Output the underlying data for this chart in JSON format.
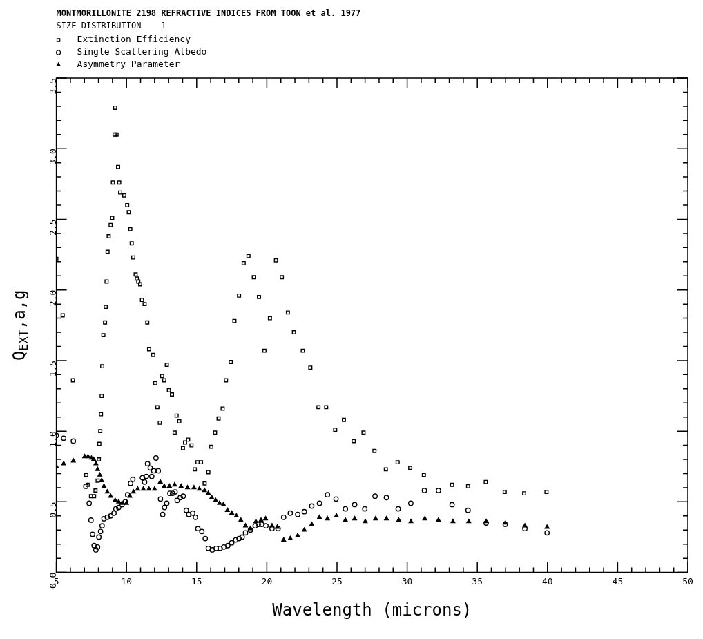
{
  "chart_data": {
    "type": "scatter",
    "title": "MONTMORILLONITE 2198 REFRACTIVE INDICES FROM TOON et al. 1977",
    "subtitle": "SIZE DISTRIBUTION    1",
    "xlabel": "Wavelength (microns)",
    "ylabel": "Q$_{EXT}$,a,g",
    "xlim": [
      5,
      50
    ],
    "ylim": [
      0,
      3.5
    ],
    "xticks": [
      5,
      {
        "value": 6,
        "label": null
      },
      {
        "value": 7,
        "label": null
      },
      {
        "value": 8,
        "label": null
      },
      {
        "value": 9,
        "label": null
      },
      10,
      {
        "value": 11,
        "label": null
      },
      {
        "value": 12,
        "label": null
      },
      {
        "value": 13,
        "label": null
      },
      {
        "value": 14,
        "label": null
      },
      15,
      {
        "value": 16,
        "label": null
      },
      {
        "value": 17,
        "label": null
      },
      {
        "value": 18,
        "label": null
      },
      {
        "value": 19,
        "label": null
      },
      20,
      {
        "value": 21,
        "label": null
      },
      {
        "value": 22,
        "label": null
      },
      {
        "value": 23,
        "label": null
      },
      {
        "value": 24,
        "label": null
      },
      25,
      {
        "value": 26,
        "label": null
      },
      {
        "value": 27,
        "label": null
      },
      {
        "value": 28,
        "label": null
      },
      {
        "value": 29,
        "label": null
      },
      30,
      {
        "value": 31,
        "label": null
      },
      {
        "value": 32,
        "label": null
      },
      {
        "value": 33,
        "label": null
      },
      {
        "value": 34,
        "label": null
      },
      35,
      {
        "value": 36,
        "label": null
      },
      {
        "value": 37,
        "label": null
      },
      {
        "value": 38,
        "label": null
      },
      {
        "value": 39,
        "label": null
      },
      40,
      {
        "value": 41,
        "label": null
      },
      {
        "value": 42,
        "label": null
      },
      {
        "value": 43,
        "label": null
      },
      {
        "value": 44,
        "label": null
      },
      45,
      {
        "value": 46,
        "label": null
      },
      {
        "value": 47,
        "label": null
      },
      {
        "value": 48,
        "label": null
      },
      {
        "value": 49,
        "label": null
      },
      50
    ],
    "yticks": [
      {
        "value": 0,
        "label": "0.0"
      },
      {
        "value": 0.1,
        "label": null
      },
      {
        "value": 0.2,
        "label": null
      },
      {
        "value": 0.3,
        "label": null
      },
      {
        "value": 0.4,
        "label": null
      },
      0.5,
      {
        "value": 0.6,
        "label": null
      },
      {
        "value": 0.7,
        "label": null
      },
      {
        "value": 0.8,
        "label": null
      },
      {
        "value": 0.9,
        "label": null
      },
      {
        "value": 1,
        "label": "1.0"
      },
      {
        "value": 1.1,
        "label": null
      },
      {
        "value": 1.2,
        "label": null
      },
      {
        "value": 1.3,
        "label": null
      },
      {
        "value": 1.4,
        "label": null
      },
      1.5,
      {
        "value": 1.6,
        "label": null
      },
      {
        "value": 1.7,
        "label": null
      },
      {
        "value": 1.8,
        "label": null
      },
      {
        "value": 1.9,
        "label": null
      },
      {
        "value": 2,
        "label": "2.0"
      },
      {
        "value": 2.1,
        "label": null
      },
      {
        "value": 2.2,
        "label": null
      },
      {
        "value": 2.3,
        "label": null
      },
      {
        "value": 2.4,
        "label": null
      },
      2.5,
      {
        "value": 2.6,
        "label": null
      },
      {
        "value": 2.7,
        "label": null
      },
      {
        "value": 2.8,
        "label": null
      },
      {
        "value": 2.9,
        "label": null
      },
      {
        "value": 3,
        "label": "3.0"
      },
      {
        "value": 3.1,
        "label": null
      },
      {
        "value": 3.2,
        "label": null
      },
      {
        "value": 3.3,
        "label": null
      },
      {
        "value": 3.4,
        "label": null
      },
      3.5
    ],
    "legend": "top left",
    "series": [
      {
        "name": "Extinction Efficiency",
        "color": "#000000",
        "marker": "square",
        "x": [
          5.0,
          5.45,
          6.18,
          7.13,
          7.23,
          7.47,
          7.69,
          7.79,
          7.94,
          8.03,
          8.06,
          8.13,
          8.18,
          8.23,
          8.27,
          8.35,
          8.47,
          8.52,
          8.58,
          8.65,
          8.73,
          8.87,
          8.98,
          9.03,
          9.15,
          9.19,
          9.29,
          9.4,
          9.48,
          9.55,
          9.84,
          10.05,
          10.16,
          10.27,
          10.37,
          10.48,
          10.65,
          10.74,
          10.84,
          10.97,
          11.1,
          11.29,
          11.48,
          11.61,
          11.9,
          12.05,
          12.2,
          12.37,
          12.54,
          12.69,
          12.87,
          13.02,
          13.24,
          13.43,
          13.57,
          13.76,
          14.02,
          14.17,
          14.39,
          14.63,
          14.87,
          15.06,
          15.31,
          15.57,
          15.83,
          16.04,
          16.31,
          16.56,
          16.85,
          17.09,
          17.43,
          17.69,
          18.02,
          18.35,
          18.69,
          19.07,
          19.44,
          19.83,
          20.22,
          20.65,
          21.07,
          21.5,
          21.93,
          22.56,
          23.1,
          23.68,
          24.23,
          24.87,
          25.49,
          26.19,
          26.89,
          27.67,
          28.48,
          29.32,
          30.22,
          31.19,
          33.2,
          34.34,
          35.6,
          36.95,
          38.34,
          39.93
        ],
        "values": [
          2.22,
          1.82,
          1.36,
          0.69,
          0.62,
          0.54,
          0.54,
          0.58,
          0.65,
          0.8,
          0.91,
          1.0,
          1.12,
          1.25,
          1.46,
          1.68,
          1.77,
          1.88,
          2.06,
          2.27,
          2.38,
          2.46,
          2.51,
          2.76,
          3.1,
          3.29,
          3.1,
          2.87,
          2.76,
          2.69,
          2.67,
          2.6,
          2.55,
          2.43,
          2.33,
          2.23,
          2.11,
          2.08,
          2.06,
          2.04,
          1.93,
          1.9,
          1.77,
          1.58,
          1.54,
          1.34,
          1.17,
          1.06,
          1.39,
          1.36,
          1.47,
          1.29,
          1.26,
          0.99,
          1.11,
          1.07,
          0.88,
          0.92,
          0.94,
          0.9,
          0.73,
          0.78,
          0.78,
          0.63,
          0.71,
          0.89,
          0.99,
          1.09,
          1.16,
          1.36,
          1.49,
          1.78,
          1.96,
          2.19,
          2.24,
          2.09,
          1.95,
          1.57,
          1.8,
          2.21,
          2.09,
          1.84,
          1.7,
          1.57,
          1.45,
          1.17,
          1.17,
          1.01,
          1.08,
          0.93,
          0.99,
          0.86,
          0.73,
          0.78,
          0.74,
          0.69,
          0.62,
          0.61,
          0.64,
          0.57,
          0.56,
          0.57
        ]
      },
      {
        "name": "Single Scattering Albedo",
        "color": "#000000",
        "marker": "circle",
        "x": [
          5.0,
          5.52,
          6.21,
          7.1,
          7.34,
          7.47,
          7.58,
          7.69,
          7.82,
          7.94,
          8.03,
          8.15,
          8.26,
          8.39,
          8.63,
          8.87,
          9.11,
          9.24,
          9.44,
          9.68,
          9.92,
          10.08,
          10.29,
          10.45,
          11.13,
          11.29,
          11.42,
          11.5,
          11.69,
          11.8,
          11.94,
          12.1,
          12.26,
          12.42,
          12.58,
          12.71,
          12.87,
          13.09,
          13.28,
          13.46,
          13.61,
          13.83,
          14.04,
          14.26,
          14.44,
          14.72,
          14.91,
          15.09,
          15.37,
          15.61,
          15.83,
          16.11,
          16.39,
          16.67,
          16.94,
          17.22,
          17.5,
          17.78,
          18.02,
          18.24,
          18.48,
          18.83,
          19.17,
          19.39,
          19.63,
          19.94,
          20.37,
          20.8,
          21.2,
          21.67,
          22.2,
          22.67,
          23.2,
          23.75,
          24.32,
          24.93,
          25.6,
          26.26,
          26.98,
          27.71,
          28.52,
          29.36,
          30.26,
          31.23,
          32.23,
          33.2,
          34.34,
          35.63,
          36.99,
          38.39,
          39.97
        ],
        "values": [
          0.97,
          0.95,
          0.93,
          0.61,
          0.49,
          0.37,
          0.27,
          0.19,
          0.16,
          0.18,
          0.25,
          0.29,
          0.33,
          0.38,
          0.39,
          0.4,
          0.42,
          0.45,
          0.46,
          0.48,
          0.5,
          0.55,
          0.63,
          0.66,
          0.67,
          0.64,
          0.68,
          0.77,
          0.74,
          0.68,
          0.72,
          0.81,
          0.72,
          0.52,
          0.41,
          0.46,
          0.49,
          0.56,
          0.56,
          0.57,
          0.51,
          0.53,
          0.54,
          0.44,
          0.41,
          0.42,
          0.39,
          0.31,
          0.29,
          0.24,
          0.17,
          0.16,
          0.17,
          0.17,
          0.18,
          0.19,
          0.21,
          0.23,
          0.24,
          0.25,
          0.28,
          0.3,
          0.33,
          0.34,
          0.34,
          0.33,
          0.31,
          0.31,
          0.39,
          0.42,
          0.41,
          0.43,
          0.47,
          0.49,
          0.55,
          0.52,
          0.45,
          0.48,
          0.45,
          0.54,
          0.53,
          0.45,
          0.49,
          0.58,
          0.58,
          0.48,
          0.44,
          0.35,
          0.34,
          0.31,
          0.28
        ]
      },
      {
        "name": "Asymmetry Parameter",
        "color": "#000000",
        "marker": "triangle",
        "x": [
          5.0,
          5.52,
          6.21,
          7.02,
          7.26,
          7.5,
          7.66,
          7.82,
          7.94,
          8.1,
          8.23,
          8.39,
          8.63,
          8.87,
          9.19,
          9.44,
          9.68,
          10.0,
          10.24,
          10.5,
          10.8,
          11.2,
          11.6,
          12.0,
          12.41,
          12.69,
          13.06,
          13.43,
          13.89,
          14.35,
          14.81,
          15.19,
          15.56,
          15.83,
          16.07,
          16.35,
          16.63,
          16.91,
          17.19,
          17.5,
          17.83,
          18.15,
          18.48,
          18.83,
          19.22,
          19.59,
          19.91,
          20.37,
          20.74,
          21.2,
          21.67,
          22.2,
          22.67,
          23.2,
          23.75,
          24.32,
          24.96,
          25.6,
          26.26,
          27.01,
          27.75,
          28.52,
          29.4,
          30.27,
          31.26,
          32.23,
          33.26,
          34.39,
          35.63,
          36.99,
          38.39,
          39.97
        ],
        "values": [
          0.75,
          0.77,
          0.79,
          0.82,
          0.82,
          0.81,
          0.8,
          0.77,
          0.73,
          0.69,
          0.65,
          0.61,
          0.57,
          0.54,
          0.51,
          0.5,
          0.49,
          0.49,
          0.54,
          0.57,
          0.59,
          0.59,
          0.59,
          0.59,
          0.64,
          0.61,
          0.61,
          0.62,
          0.61,
          0.6,
          0.6,
          0.59,
          0.58,
          0.56,
          0.53,
          0.51,
          0.49,
          0.48,
          0.44,
          0.42,
          0.4,
          0.37,
          0.33,
          0.31,
          0.36,
          0.37,
          0.38,
          0.33,
          0.32,
          0.23,
          0.24,
          0.26,
          0.3,
          0.34,
          0.39,
          0.38,
          0.4,
          0.37,
          0.38,
          0.36,
          0.38,
          0.38,
          0.37,
          0.36,
          0.38,
          0.37,
          0.36,
          0.36,
          0.36,
          0.35,
          0.33,
          0.32
        ]
      }
    ]
  }
}
